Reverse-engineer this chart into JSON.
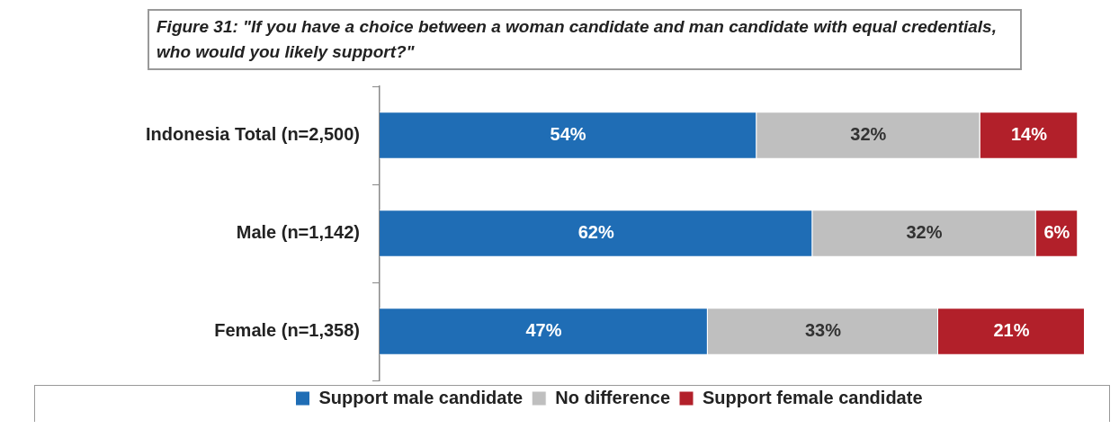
{
  "chart_data": {
    "type": "bar",
    "orientation": "horizontal",
    "stacked": true,
    "title": "Figure 31: \"If you have  a choice between a woman candidate and man candidate with equal credentials,  who would you likely support?\"",
    "categories": [
      "Indonesia Total (n=2,500)",
      "Male (n=1,142)",
      "Female (n=1,358)"
    ],
    "series": [
      {
        "name": "Support male candidate",
        "color": "#1f6db5",
        "values": [
          54,
          62,
          47
        ],
        "value_labels": [
          "54%",
          "62%",
          "47%"
        ]
      },
      {
        "name": "No difference",
        "color": "#bfbfbf",
        "values": [
          32,
          32,
          33
        ],
        "value_labels": [
          "32%",
          "32%",
          "33%"
        ]
      },
      {
        "name": "Support female candidate",
        "color": "#b2202a",
        "values": [
          14,
          6,
          21
        ],
        "value_labels": [
          "14%",
          "6%",
          "21%"
        ]
      }
    ],
    "legend": "bottom"
  }
}
